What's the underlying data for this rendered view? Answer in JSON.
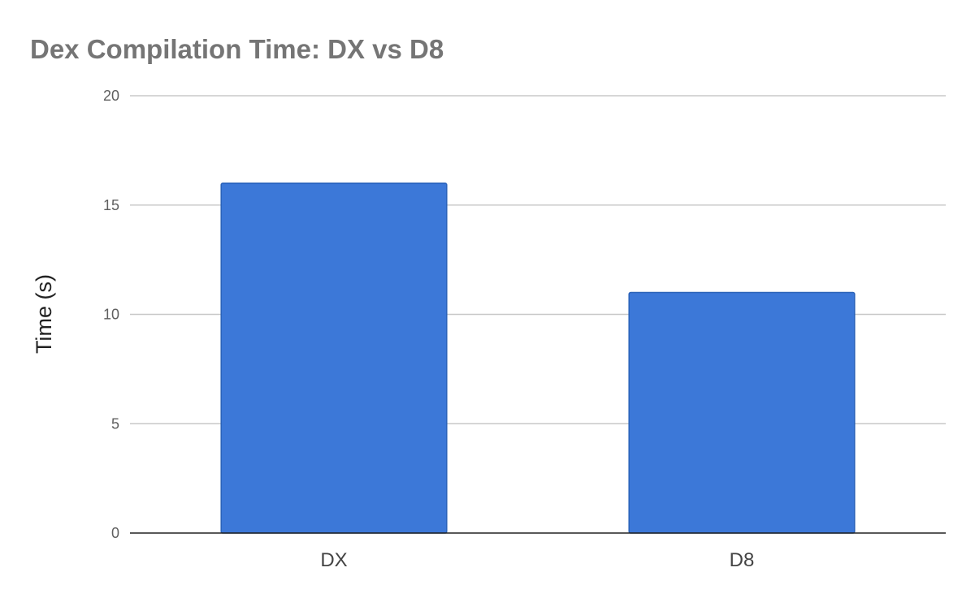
{
  "chart_data": {
    "type": "bar",
    "title": "Dex Compilation Time: DX vs D8",
    "xlabel": "",
    "ylabel": "Time (s)",
    "categories": [
      "DX",
      "D8"
    ],
    "values": [
      16,
      11
    ],
    "ylim": [
      0,
      20
    ],
    "yticks": [
      0,
      5,
      10,
      15,
      20
    ],
    "grid": true,
    "legend": "none",
    "bar_color": "#3c78d8",
    "bar_edge_color": "#2a62b8"
  }
}
